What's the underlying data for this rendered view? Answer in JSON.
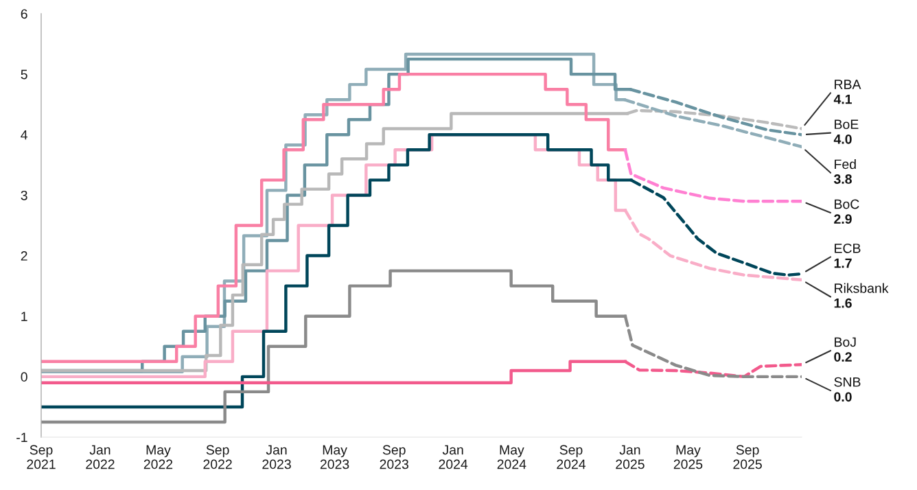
{
  "chart_data": {
    "type": "step",
    "xlim": [
      "2021-09-01",
      "2025-12-22"
    ],
    "ylim": [
      -1,
      6
    ],
    "yticks": [
      -1,
      0,
      1,
      2,
      3,
      4,
      5,
      6
    ],
    "xticks": [
      {
        "value": "2021-09-01",
        "label": "Sep\n2021"
      },
      {
        "value": "2022-01-01",
        "label": "Jan\n2022"
      },
      {
        "value": "2022-05-01",
        "label": "May\n2022"
      },
      {
        "value": "2022-09-01",
        "label": "Sep\n2022"
      },
      {
        "value": "2023-01-01",
        "label": "Jan\n2023"
      },
      {
        "value": "2023-05-01",
        "label": "May\n2023"
      },
      {
        "value": "2023-09-01",
        "label": "Sep\n2023"
      },
      {
        "value": "2024-01-01",
        "label": "Jan\n2024"
      },
      {
        "value": "2024-05-01",
        "label": "May\n2024"
      },
      {
        "value": "2024-09-01",
        "label": "Sep\n2024"
      },
      {
        "value": "2025-01-01",
        "label": "Jan\n2025"
      },
      {
        "value": "2025-05-01",
        "label": "May\n2025"
      },
      {
        "value": "2025-09-01",
        "label": "Sep\n2025"
      }
    ],
    "series": [
      {
        "color": "#8fadb8",
        "x": [
          "2021-09-01",
          "2022-06-20",
          "2022-08-10",
          "2022-09-15",
          "2022-10-25",
          "2022-12-12",
          "2023-01-20",
          "2023-03-01",
          "2023-04-15",
          "2023-06-01",
          "2023-07-05",
          "2023-09-25",
          "2024-10-18",
          "2024-12-03",
          "2024-12-20"
        ],
        "values": [
          0.08,
          0.33,
          0.83,
          1.58,
          2.33,
          3.08,
          3.83,
          4.33,
          4.58,
          4.83,
          5.08,
          5.33,
          4.83,
          4.58,
          4.58
        ]
      },
      {
        "color": "#6893a0",
        "x": [
          "2021-09-01",
          "2022-03-29",
          "2022-05-14",
          "2022-06-22",
          "2022-08-06",
          "2022-09-16",
          "2022-10-29",
          "2022-12-12",
          "2023-01-23",
          "2023-02-28",
          "2023-04-15",
          "2023-05-30",
          "2023-07-13",
          "2023-08-21",
          "2023-09-30",
          "2024-09-01",
          "2024-12-01",
          "2025-01-01"
        ],
        "values": [
          0.1,
          0.25,
          0.5,
          0.75,
          1.0,
          1.25,
          1.75,
          2.25,
          3.0,
          3.5,
          4.0,
          4.25,
          4.5,
          5.0,
          5.25,
          5.0,
          4.75,
          4.75
        ]
      },
      {
        "color": "#b8b8b8",
        "x": [
          "2021-09-01",
          "2022-08-08",
          "2022-09-07",
          "2022-10-02",
          "2022-10-23",
          "2022-12-01",
          "2022-12-25",
          "2023-01-17",
          "2023-02-22",
          "2023-04-19",
          "2023-05-16",
          "2023-07-06",
          "2023-08-10",
          "2023-12-28",
          "2024-12-26"
        ],
        "values": [
          0.1,
          0.35,
          0.85,
          1.35,
          1.85,
          2.35,
          2.6,
          2.85,
          3.1,
          3.35,
          3.6,
          3.85,
          4.1,
          4.35,
          4.35
        ]
      },
      {
        "color": "#f97fa4",
        "x": [
          "2021-09-01",
          "2022-06-08",
          "2022-07-17",
          "2022-09-02",
          "2022-10-09",
          "2022-12-01",
          "2023-01-16",
          "2023-02-25",
          "2023-04-08",
          "2023-08-10",
          "2023-09-12",
          "2024-07-10",
          "2024-08-24",
          "2024-10-02",
          "2024-11-17",
          "2024-12-22"
        ],
        "values": [
          0.25,
          0.5,
          1.0,
          1.5,
          2.5,
          3.25,
          3.75,
          4.25,
          4.5,
          4.75,
          5.0,
          4.75,
          4.5,
          4.25,
          3.75,
          3.75
        ]
      },
      {
        "color": "#f9adc7",
        "x": [
          "2021-09-01",
          "2022-08-06",
          "2022-10-02",
          "2022-12-12",
          "2023-02-15",
          "2023-04-26",
          "2023-07-05",
          "2023-09-03",
          "2023-11-18",
          "2024-06-19",
          "2024-09-18",
          "2024-10-26",
          "2024-12-02",
          "2024-12-22"
        ],
        "values": [
          0.0,
          0.25,
          0.75,
          1.75,
          2.5,
          3.0,
          3.5,
          3.75,
          4.0,
          3.75,
          3.5,
          3.25,
          2.75,
          2.75
        ]
      },
      {
        "color": "#00465a",
        "x": [
          "2021-09-01",
          "2022-10-22",
          "2022-12-05",
          "2023-01-20",
          "2023-03-05",
          "2023-04-19",
          "2023-05-28",
          "2023-07-13",
          "2023-08-21",
          "2023-09-29",
          "2023-11-13",
          "2024-07-15",
          "2024-10-13",
          "2024-11-17",
          "2025-01-03"
        ],
        "values": [
          -0.5,
          0.0,
          0.75,
          1.5,
          2.0,
          2.5,
          3.0,
          3.25,
          3.5,
          3.75,
          4.0,
          3.75,
          3.5,
          3.25,
          3.25
        ]
      },
      {
        "color": "#8a8a8a",
        "x": [
          "2021-09-01",
          "2022-09-16",
          "2022-12-15",
          "2023-03-02",
          "2023-06-01",
          "2023-08-24",
          "2024-04-30",
          "2024-07-25",
          "2024-10-23",
          "2024-12-22"
        ],
        "values": [
          -0.75,
          -0.25,
          0.5,
          1.0,
          1.5,
          1.75,
          1.5,
          1.25,
          1.0,
          1.0
        ]
      },
      {
        "color": "#f25a8c",
        "x": [
          "2021-09-01",
          "2024-04-30",
          "2024-08-30",
          "2024-12-22"
        ],
        "values": [
          -0.1,
          0.1,
          0.25,
          0.25
        ]
      },
      {
        "type": "line",
        "line_style": "dashed",
        "name": "RBA",
        "color": "#bbbbbb",
        "x": [
          "2024-12-26",
          "2025-01-15",
          "2025-04-05",
          "2025-07-09",
          "2025-10-12",
          "2025-12-22"
        ],
        "values": [
          4.35,
          4.4,
          4.38,
          4.31,
          4.2,
          4.1
        ],
        "value_labels": [
          null,
          null,
          null,
          null,
          null,
          "4.1"
        ]
      },
      {
        "type": "line",
        "line_style": "dashed",
        "name": "BoE",
        "color": "#6893a0",
        "x": [
          "2025-01-01",
          "2025-04-05",
          "2025-07-09",
          "2025-10-12",
          "2025-12-22"
        ],
        "values": [
          4.75,
          4.54,
          4.29,
          4.08,
          4.0
        ],
        "value_labels": [
          null,
          null,
          null,
          null,
          "4.0"
        ]
      },
      {
        "type": "line",
        "line_style": "dashed",
        "name": "Fed",
        "color": "#8fadb8",
        "x": [
          "2024-12-20",
          "2025-01-01",
          "2025-04-05",
          "2025-07-09",
          "2025-10-12",
          "2025-12-22"
        ],
        "values": [
          4.58,
          4.55,
          4.31,
          4.15,
          3.95,
          3.8
        ],
        "value_labels": [
          null,
          null,
          null,
          null,
          null,
          "3.8"
        ]
      },
      {
        "type": "line",
        "line_style": "dashed",
        "name": "BoC",
        "color": "#ff80d2",
        "x": [
          "2024-12-22",
          "2025-01-03",
          "2025-03-11",
          "2025-06-15",
          "2025-08-25",
          "2025-12-22"
        ],
        "values": [
          3.75,
          3.35,
          3.12,
          2.95,
          2.9,
          2.9
        ],
        "value_labels": [
          null,
          null,
          null,
          null,
          null,
          "2.9"
        ]
      },
      {
        "type": "line",
        "line_style": "dashed",
        "name": "ECB",
        "color": "#00465a",
        "x": [
          "2025-01-03",
          "2025-03-11",
          "2025-05-21",
          "2025-06-29",
          "2025-08-25",
          "2025-10-22",
          "2025-11-24",
          "2025-12-22"
        ],
        "values": [
          3.25,
          2.96,
          2.28,
          2.04,
          1.88,
          1.71,
          1.68,
          1.7
        ],
        "value_labels": [
          null,
          null,
          null,
          null,
          null,
          null,
          null,
          "1.7"
        ]
      },
      {
        "type": "line",
        "line_style": "dashed",
        "name": "Riksbank",
        "color": "#f9adc7",
        "x": [
          "2024-12-22",
          "2025-01-20",
          "2025-02-08",
          "2025-03-25",
          "2025-06-15",
          "2025-08-25",
          "2025-12-22"
        ],
        "values": [
          2.75,
          2.36,
          2.28,
          2.0,
          1.79,
          1.68,
          1.6
        ],
        "value_labels": [
          null,
          null,
          null,
          null,
          null,
          null,
          "1.6"
        ]
      },
      {
        "type": "line",
        "line_style": "dashed",
        "name": "BoJ",
        "color": "#f25a8c",
        "x": [
          "2024-12-22",
          "2025-01-20",
          "2025-04-05",
          "2025-06-15",
          "2025-08-25",
          "2025-09-28",
          "2025-12-22"
        ],
        "values": [
          0.25,
          0.11,
          0.1,
          0.06,
          0.0,
          0.17,
          0.2
        ],
        "value_labels": [
          null,
          null,
          null,
          null,
          null,
          null,
          "0.2"
        ]
      },
      {
        "type": "line",
        "line_style": "dashed",
        "name": "SNB",
        "color": "#8a8a8a",
        "x": [
          "2024-12-22",
          "2025-01-06",
          "2025-04-05",
          "2025-06-15",
          "2025-08-25",
          "2025-12-22"
        ],
        "values": [
          1.0,
          0.52,
          0.19,
          0.02,
          0.0,
          0.0
        ],
        "value_labels": [
          null,
          null,
          null,
          null,
          null,
          "0.0"
        ]
      }
    ]
  }
}
